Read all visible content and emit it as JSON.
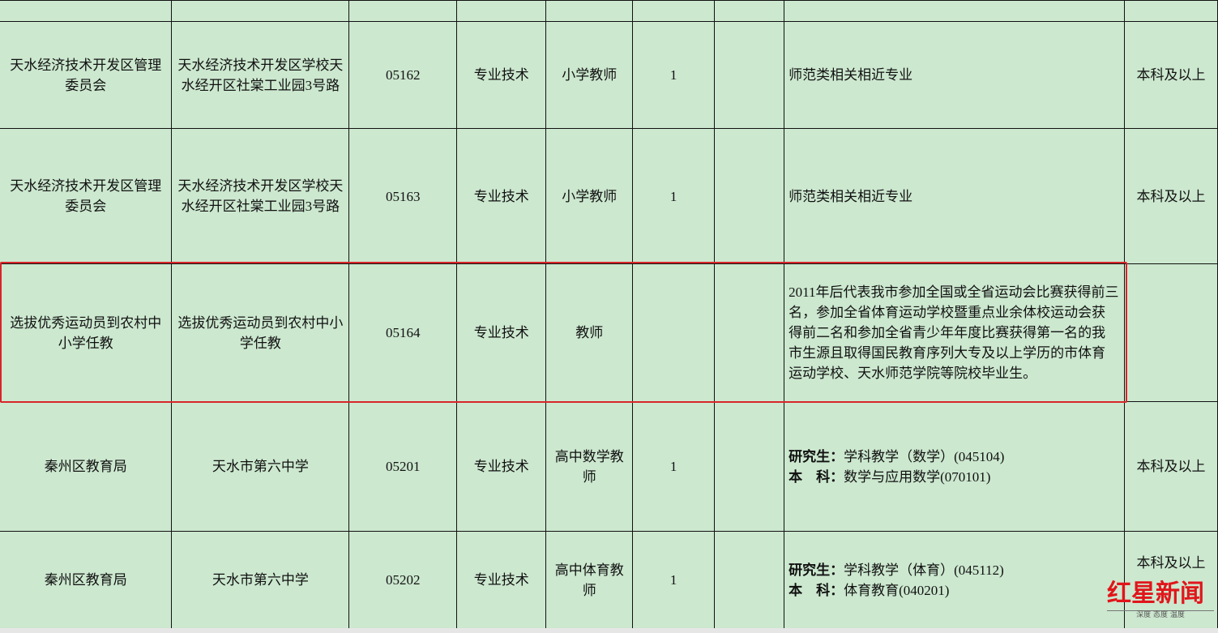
{
  "rows": [
    {
      "dept": "",
      "unit": "",
      "code": "",
      "category": "",
      "position": "",
      "count": "",
      "blank": "",
      "requirement": [],
      "education": ""
    },
    {
      "dept": "天水经济技术开发区管理委员会",
      "unit": "天水经济技术开发区学校天水经开区社棠工业园3号路",
      "code": "05162",
      "category": "专业技术",
      "position": "小学教师",
      "count": "1",
      "blank": "",
      "requirement": [
        {
          "label": "",
          "text": "师范类相关相近专业"
        }
      ],
      "education": "本科及以上"
    },
    {
      "dept": "天水经济技术开发区管理委员会",
      "unit": "天水经济技术开发区学校天水经开区社棠工业园3号路",
      "code": "05163",
      "category": "专业技术",
      "position": "小学教师",
      "count": "1",
      "blank": "",
      "requirement": [
        {
          "label": "",
          "text": "师范类相关相近专业"
        }
      ],
      "education": "本科及以上"
    },
    {
      "dept": "选拔优秀运动员到农村中小学任教",
      "unit": "选拔优秀运动员到农村中小学任教",
      "code": "05164",
      "category": "专业技术",
      "position": "教师",
      "count": "",
      "blank": "",
      "requirement": [
        {
          "label": "",
          "text": "2011年后代表我市参加全国或全省运动会比赛获得前三名，参加全省体育运动学校暨重点业余体校运动会获得前二名和参加全省青少年年度比赛获得第一名的我市生源且取得国民教育序列大专及以上学历的市体育运动学校、天水师范学院等院校毕业生。"
        }
      ],
      "education": ""
    },
    {
      "dept": "秦州区教育局",
      "unit": "天水市第六中学",
      "code": "05201",
      "category": "专业技术",
      "position": "高中数学教师",
      "count": "1",
      "blank": "",
      "requirement": [
        {
          "label": "研究生：",
          "text": "学科教学（数学）(045104)"
        },
        {
          "label": "本　科：",
          "text": "数学与应用数学(070101)"
        }
      ],
      "education": "本科及以上"
    },
    {
      "dept": "秦州区教育局",
      "unit": "天水市第六中学",
      "code": "05202",
      "category": "专业技术",
      "position": "高中体育教师",
      "count": "1",
      "blank": "",
      "requirement": [
        {
          "label": "研究生：",
          "text": "学科教学（体育）(045112)"
        },
        {
          "label": "本　科：",
          "text": "体育教育(040201)"
        }
      ],
      "education": "本科及以上"
    }
  ],
  "highlight_color": "#d8262a",
  "cell_background": "#cce8cf",
  "watermark": {
    "logo": "红星新闻",
    "slogan": "深度 态度 温度"
  }
}
